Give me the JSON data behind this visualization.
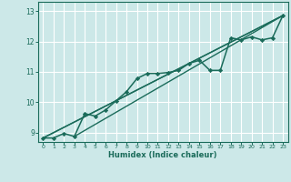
{
  "xlabel": "Humidex (Indice chaleur)",
  "background_color": "#cce8e8",
  "grid_color": "#ffffff",
  "line_color": "#1a6b5a",
  "xlim": [
    -0.5,
    23.5
  ],
  "ylim": [
    8.7,
    13.3
  ],
  "xticks": [
    0,
    1,
    2,
    3,
    4,
    5,
    6,
    7,
    8,
    9,
    10,
    11,
    12,
    13,
    14,
    15,
    16,
    17,
    18,
    19,
    20,
    21,
    22,
    23
  ],
  "yticks": [
    9,
    10,
    11,
    12,
    13
  ],
  "series": [
    {
      "x": [
        0,
        1,
        2,
        3,
        4,
        5,
        6,
        7,
        8,
        9,
        10,
        11,
        12,
        13,
        14,
        15,
        16,
        17,
        18,
        19,
        20,
        21,
        22,
        23
      ],
      "y": [
        8.83,
        8.83,
        8.98,
        8.88,
        9.63,
        9.55,
        9.75,
        10.05,
        10.35,
        10.78,
        10.95,
        10.95,
        10.98,
        11.05,
        11.28,
        11.38,
        11.05,
        11.05,
        12.12,
        12.05,
        12.15,
        12.05,
        12.12,
        12.85
      ],
      "marker": "D",
      "markersize": 2.2,
      "linewidth": 1.1
    },
    {
      "x": [
        0,
        23
      ],
      "y": [
        8.83,
        12.85
      ],
      "marker": null,
      "markersize": 0,
      "linewidth": 1.0
    },
    {
      "x": [
        0,
        23
      ],
      "y": [
        8.83,
        12.85
      ],
      "marker": null,
      "markersize": 0,
      "linewidth": 1.0
    },
    {
      "x": [
        3,
        23
      ],
      "y": [
        8.88,
        12.85
      ],
      "marker": null,
      "markersize": 0,
      "linewidth": 1.0
    }
  ]
}
